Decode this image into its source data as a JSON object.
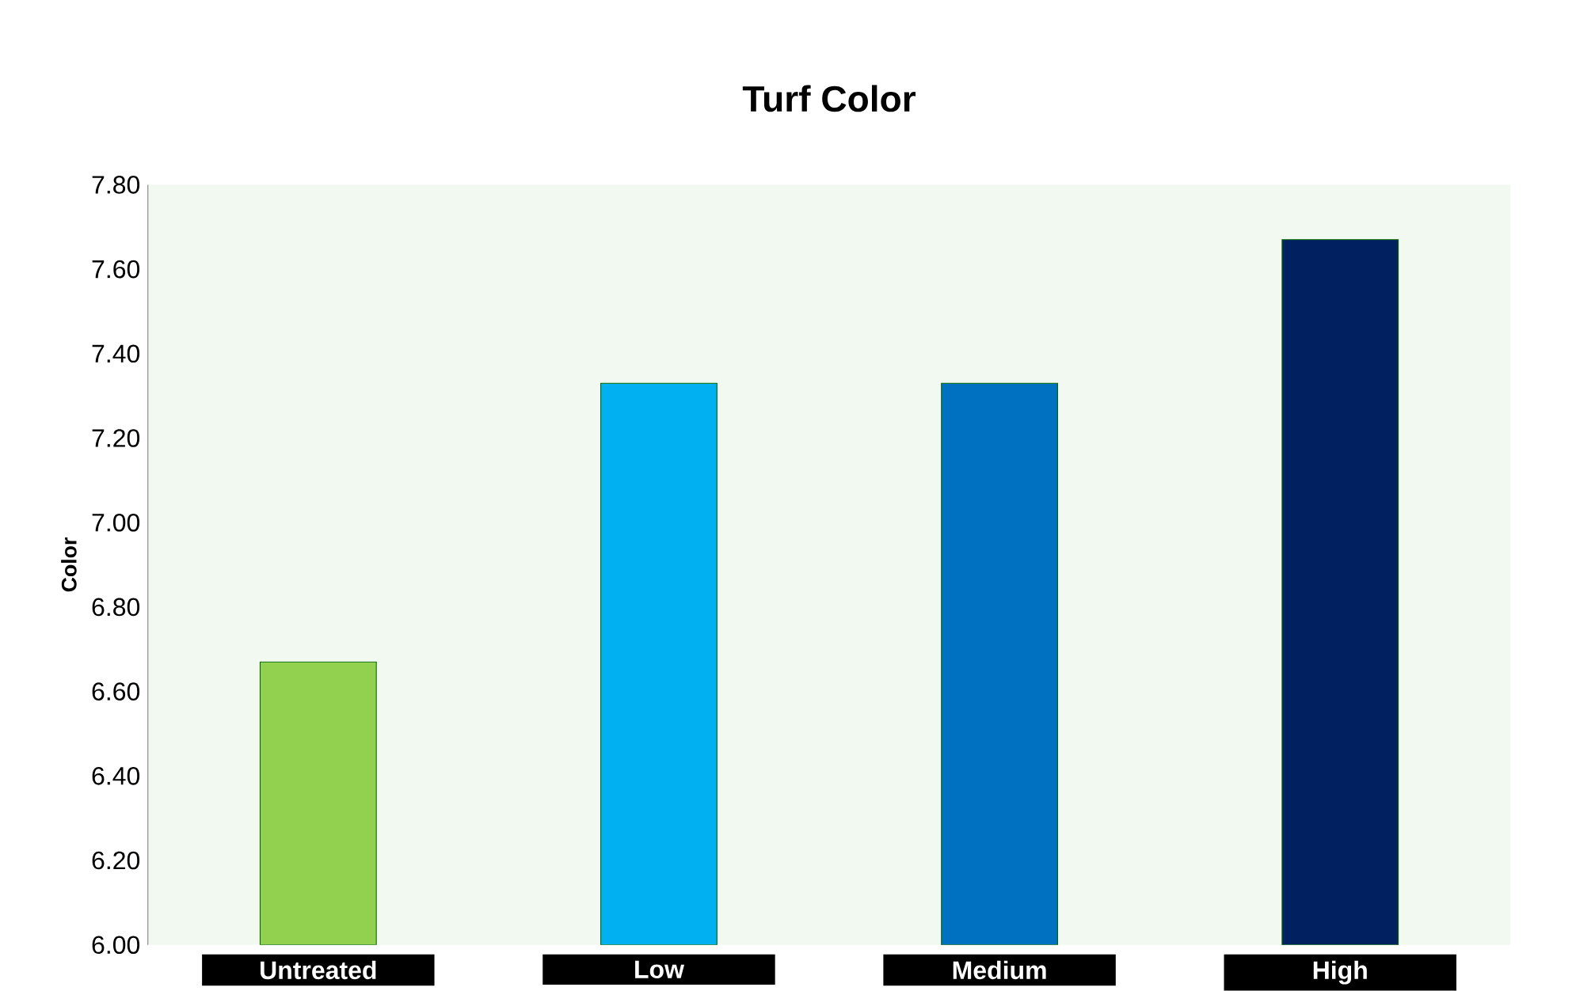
{
  "chart_data": {
    "type": "bar",
    "title": "Turf Color",
    "ylabel": "Color",
    "categories": [
      "Untreated",
      "Low",
      "Medium",
      "High"
    ],
    "values": [
      6.67,
      7.33,
      7.33,
      7.67
    ],
    "colors": [
      "#92d050",
      "#00b0f0",
      "#0070c0",
      "#002060"
    ],
    "ylim": [
      6.0,
      7.8
    ],
    "yticks": [
      {
        "value": 6.0,
        "label": "6.00"
      },
      {
        "value": 6.2,
        "label": "6.20"
      },
      {
        "value": 6.4,
        "label": "6.40"
      },
      {
        "value": 6.6,
        "label": "6.60"
      },
      {
        "value": 6.8,
        "label": "6.80"
      },
      {
        "value": 7.0,
        "label": "7.00"
      },
      {
        "value": 7.2,
        "label": "7.20"
      },
      {
        "value": 7.4,
        "label": "7.40"
      },
      {
        "value": 7.6,
        "label": "7.60"
      },
      {
        "value": 7.8,
        "label": "7.80"
      }
    ],
    "grid": false
  }
}
